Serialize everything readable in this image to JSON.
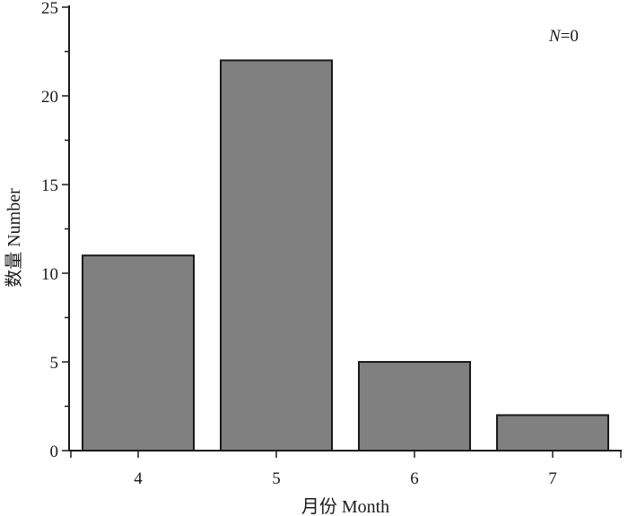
{
  "chart_data": {
    "type": "bar",
    "categories": [
      "4",
      "5",
      "6",
      "7"
    ],
    "values": [
      11,
      22,
      5,
      2
    ],
    "xlabel": "月份 Month",
    "ylabel": "数量 Number",
    "ylim": [
      0,
      25
    ],
    "yticks": [
      "0",
      "5",
      "10",
      "15",
      "20",
      "25"
    ],
    "annotation": {
      "italic": "N",
      "rest": "=0"
    },
    "grid": false,
    "legend": "none",
    "colors": {
      "bar_fill": "#808080",
      "bar_stroke": "#1a1a1a",
      "axis": "#1a1a1a"
    }
  }
}
